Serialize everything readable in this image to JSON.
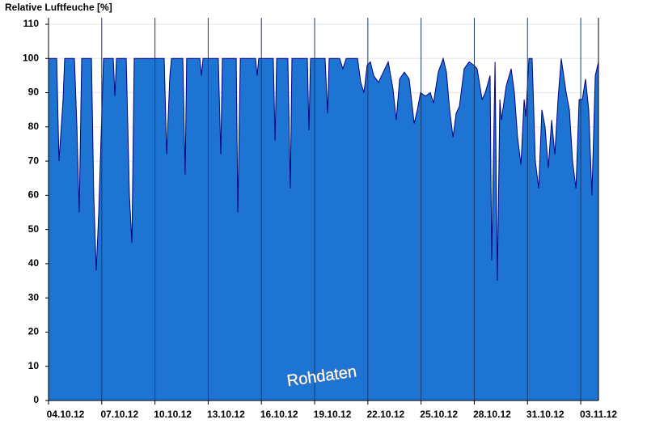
{
  "chart_data": {
    "type": "area",
    "title": "Relative Luftfeuche [%]",
    "annotation": "Rohdaten",
    "color": "#1e74d2",
    "line_color": "#000080",
    "grid": true,
    "xlim": [
      4,
      35
    ],
    "ylim": [
      0,
      110
    ],
    "yticks": [
      0,
      10,
      20,
      30,
      40,
      50,
      60,
      70,
      80,
      90,
      100,
      110
    ],
    "xticks": [
      {
        "value": 4,
        "label": "04.10.12"
      },
      {
        "value": 7,
        "label": "07.10.12"
      },
      {
        "value": 10,
        "label": "10.10.12"
      },
      {
        "value": 13,
        "label": "13.10.12"
      },
      {
        "value": 16,
        "label": "16.10.12"
      },
      {
        "value": 19,
        "label": "19.10.12"
      },
      {
        "value": 22,
        "label": "22.10.12"
      },
      {
        "value": 25,
        "label": "25.10.12"
      },
      {
        "value": 28,
        "label": "28.10.12"
      },
      {
        "value": 31,
        "label": "31.10.12"
      },
      {
        "value": 34,
        "label": "03.11.12"
      }
    ],
    "x": [
      4.0,
      4.46,
      4.59,
      4.82,
      4.91,
      5.46,
      5.6,
      5.73,
      5.87,
      6.42,
      6.55,
      6.69,
      6.83,
      7.1,
      7.65,
      7.74,
      7.83,
      8.38,
      8.56,
      8.7,
      8.83,
      10.52,
      10.66,
      10.84,
      10.93,
      11.57,
      11.7,
      11.79,
      12.53,
      12.62,
      12.71,
      13.57,
      13.71,
      13.8,
      14.58,
      14.67,
      14.81,
      15.67,
      15.76,
      15.85,
      16.67,
      16.77,
      16.86,
      17.49,
      17.63,
      17.72,
      18.59,
      18.68,
      18.77,
      19.59,
      19.73,
      19.82,
      20.41,
      20.59,
      20.78,
      21.42,
      21.6,
      21.78,
      21.96,
      22.14,
      22.33,
      22.6,
      22.87,
      23.15,
      23.42,
      23.6,
      23.79,
      24.06,
      24.33,
      24.61,
      24.79,
      24.97,
      25.24,
      25.52,
      25.7,
      25.97,
      26.25,
      26.43,
      26.61,
      26.8,
      26.98,
      27.16,
      27.43,
      27.71,
      27.98,
      28.16,
      28.44,
      28.62,
      28.89,
      28.98,
      29.17,
      29.3,
      29.44,
      29.53,
      29.8,
      30.08,
      30.26,
      30.44,
      30.63,
      30.81,
      30.9,
      31.08,
      31.26,
      31.44,
      31.63,
      31.81,
      31.99,
      32.17,
      32.36,
      32.54,
      32.72,
      32.9,
      33.18,
      33.36,
      33.54,
      33.73,
      33.91,
      34.09,
      34.27,
      34.45,
      34.63,
      34.82,
      35.0
    ],
    "series": [
      {
        "values": [
          100,
          100,
          70,
          88,
          100,
          100,
          80,
          55,
          100,
          100,
          60,
          38,
          55,
          100,
          100,
          89,
          100,
          100,
          60,
          46,
          100,
          100,
          72,
          95,
          100,
          100,
          66,
          100,
          100,
          95,
          100,
          100,
          72,
          100,
          100,
          55,
          100,
          100,
          95,
          100,
          100,
          76,
          100,
          100,
          62,
          100,
          100,
          79,
          100,
          100,
          84,
          100,
          100,
          97,
          100,
          100,
          93,
          90,
          98,
          99,
          95,
          93,
          96,
          99,
          91,
          82,
          94,
          96,
          94,
          81,
          85,
          90,
          89,
          90,
          87,
          96,
          100,
          96,
          85,
          77,
          84,
          86,
          97,
          99,
          98,
          97,
          88,
          90,
          95,
          41,
          99,
          35,
          88,
          82,
          92,
          97,
          90,
          77,
          69,
          88,
          83,
          100,
          100,
          70,
          62,
          85,
          80,
          68,
          82,
          72,
          88,
          100,
          90,
          85,
          70,
          62,
          88,
          88,
          94,
          85,
          60,
          95,
          99
        ]
      }
    ]
  }
}
